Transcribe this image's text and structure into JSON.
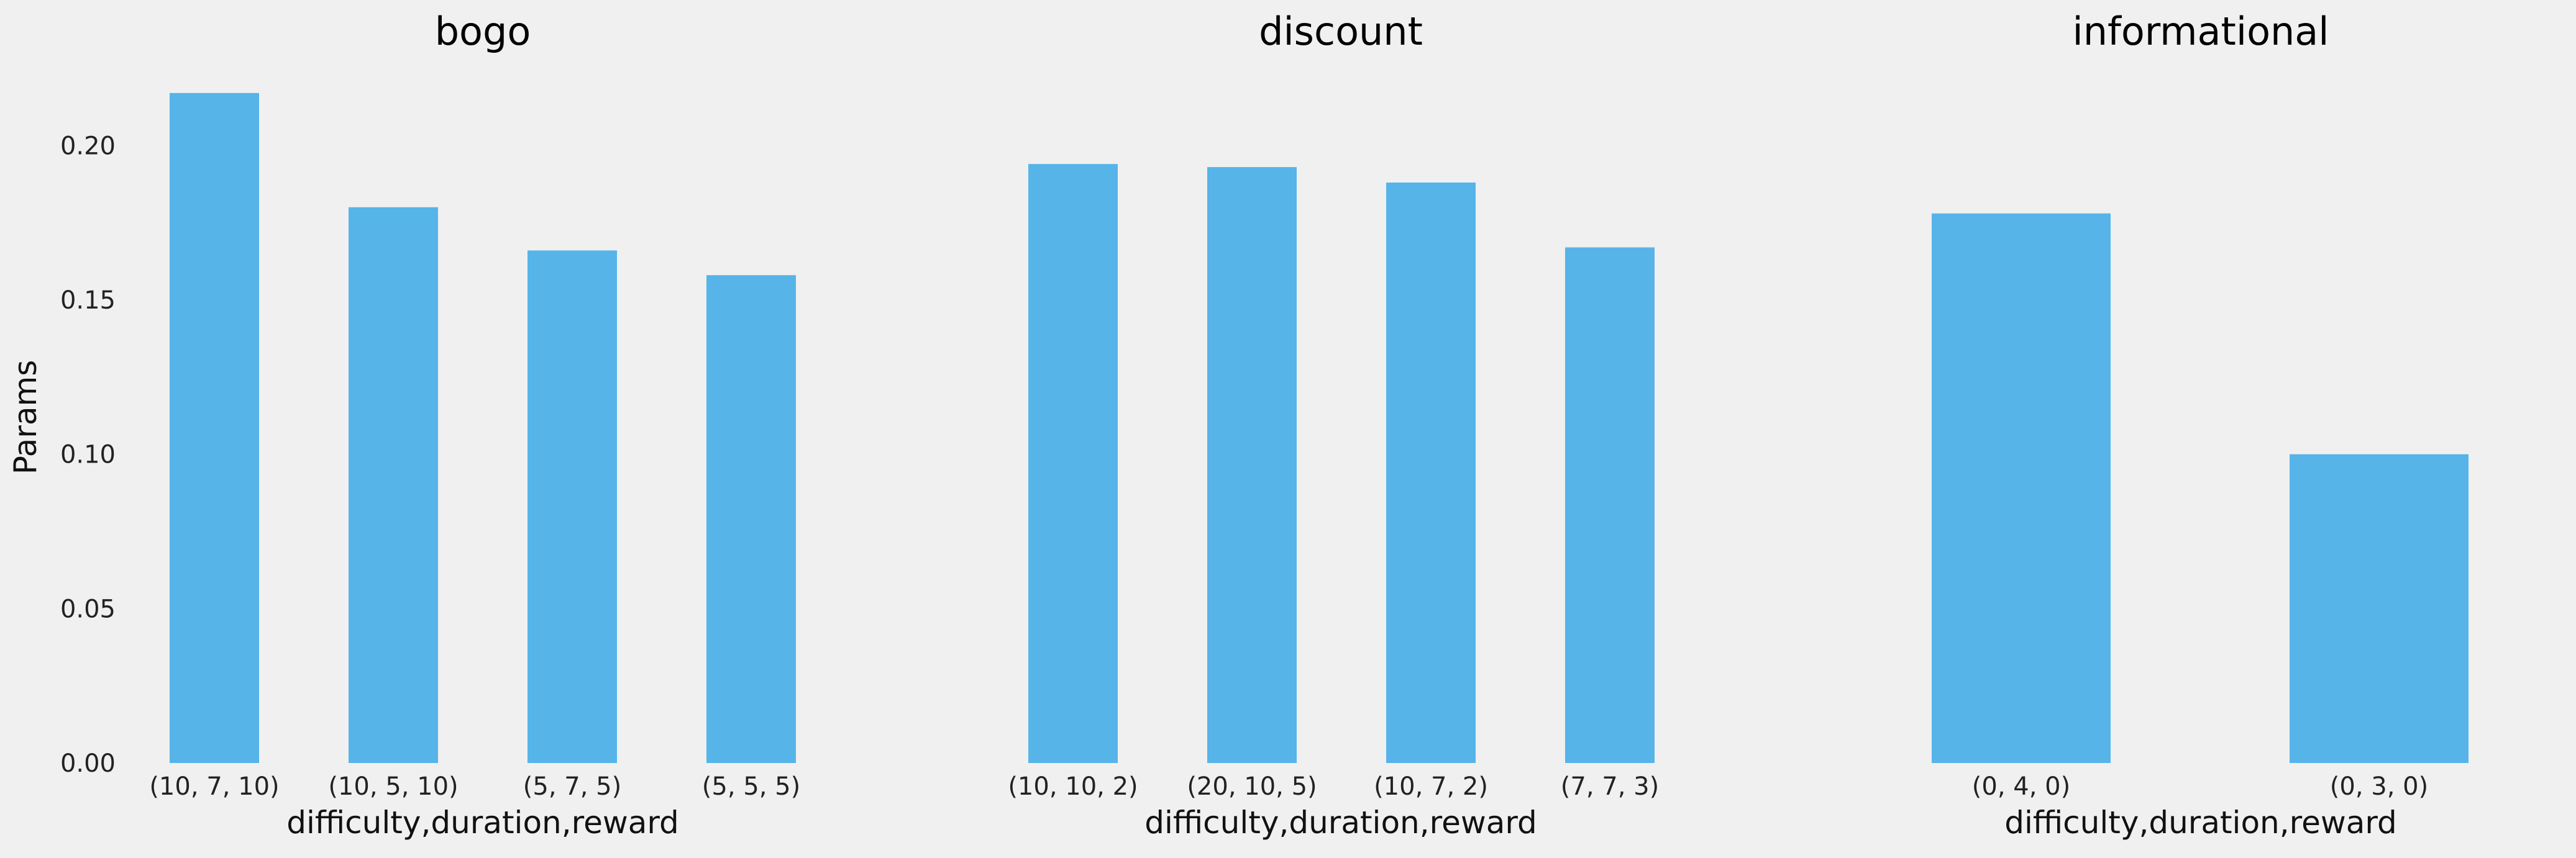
{
  "chart_data": {
    "type": "bar",
    "ylabel": "Params",
    "ylim": [
      0,
      0.225
    ],
    "yticks": [
      "0.00",
      "0.05",
      "0.10",
      "0.15",
      "0.20"
    ],
    "yticks_values": [
      0,
      0.05,
      0.1,
      0.15,
      0.2
    ],
    "grid": false,
    "bar_color": "#56b4e9",
    "background_color": "#f0f0f0",
    "panels": [
      {
        "title": "bogo",
        "xlabel": "difficulty,duration,reward",
        "categories": [
          "(10, 7, 10)",
          "(10, 5, 10)",
          "(5, 7, 5)",
          "(5, 5, 5)"
        ],
        "values": [
          0.217,
          0.18,
          0.166,
          0.158
        ]
      },
      {
        "title": "discount",
        "xlabel": "difficulty,duration,reward",
        "categories": [
          "(10, 10, 2)",
          "(20, 10, 5)",
          "(10, 7, 2)",
          "(7, 7, 3)"
        ],
        "values": [
          0.194,
          0.193,
          0.188,
          0.167
        ]
      },
      {
        "title": "informational",
        "xlabel": "difficulty,duration,reward",
        "categories": [
          "(0, 4, 0)",
          "(0, 3, 0)"
        ],
        "values": [
          0.178,
          0.1
        ]
      }
    ]
  }
}
